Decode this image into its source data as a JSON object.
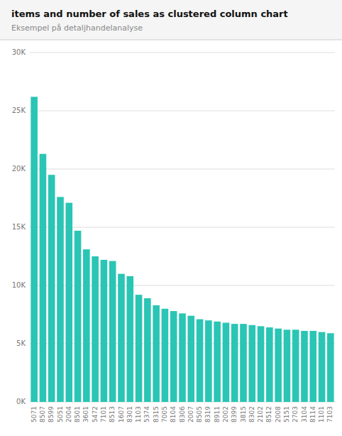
{
  "chart_data": {
    "type": "bar",
    "title": "items and number of sales as clustered column chart",
    "subtitle": "Eksempel på detaljhandelanalyse",
    "categories": [
      "5071",
      "8507",
      "8599",
      "5051",
      "2004",
      "8501",
      "3601",
      "5472",
      "7101",
      "8513",
      "1607",
      "8301",
      "1103",
      "5374",
      "8315",
      "7005",
      "8104",
      "8306",
      "2007",
      "8505",
      "8319",
      "8911",
      "2002",
      "8399",
      "3815",
      "8302",
      "2102",
      "8512",
      "2008",
      "5151",
      "2703",
      "3104",
      "8114",
      "1101",
      "7103"
    ],
    "values": [
      26200,
      21300,
      19500,
      17600,
      17100,
      14700,
      13100,
      12500,
      12200,
      12100,
      11000,
      10800,
      9200,
      8900,
      8300,
      8000,
      7800,
      7600,
      7400,
      7100,
      7000,
      6900,
      6800,
      6700,
      6700,
      6600,
      6500,
      6400,
      6300,
      6200,
      6200,
      6100,
      6100,
      6000,
      5900
    ],
    "color": "#2AC5B4",
    "ylim": [
      0,
      30000
    ],
    "yticks": [
      {
        "value": 0,
        "label": "0K"
      },
      {
        "value": 5000,
        "label": "5K"
      },
      {
        "value": 10000,
        "label": "10K"
      },
      {
        "value": 15000,
        "label": "15K"
      },
      {
        "value": 20000,
        "label": "20K"
      },
      {
        "value": 25000,
        "label": "25K"
      },
      {
        "value": 30000,
        "label": "30K"
      }
    ],
    "grid": true
  }
}
